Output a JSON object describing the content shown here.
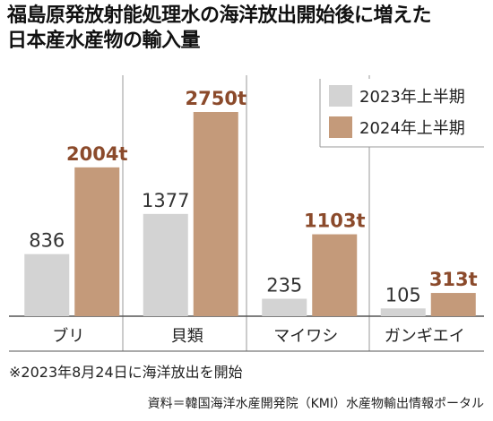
{
  "title_line1": "福島原発放射能処理水の海洋放出開始後に増えた",
  "title_line2": "日本産水産物の輸入量",
  "note": "※2023年8月24日に海洋放出を開始",
  "source": "資料＝韓国海洋水産開発院（KMI）水産物輸出情報ポータル",
  "colors": {
    "y2023": "#d3d3d3",
    "y2024": "#c49a7a",
    "label2024": "#8b4a2b",
    "label2023": "#333333"
  },
  "chart_data": {
    "type": "bar",
    "categories": [
      "ブリ",
      "貝類",
      "マイワシ",
      "ガンギエイ"
    ],
    "series": [
      {
        "name": "2023年上半期",
        "values": [
          836,
          1377,
          235,
          105
        ],
        "labels": [
          "836",
          "1377",
          "235",
          "105"
        ]
      },
      {
        "name": "2024年上半期",
        "values": [
          2004,
          2750,
          1103,
          313
        ],
        "labels": [
          "2004t",
          "2750t",
          "1103t",
          "313t"
        ]
      }
    ],
    "legend": "top-right",
    "ylim": [
      0,
      3000
    ]
  }
}
